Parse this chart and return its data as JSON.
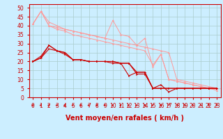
{
  "xlabel": "Vent moyen/en rafales ( km/h )",
  "bg_color": "#cceeff",
  "grid_color": "#aacccc",
  "xlim": [
    -0.5,
    23.5
  ],
  "ylim": [
    0,
    52
  ],
  "yticks": [
    0,
    5,
    10,
    15,
    20,
    25,
    30,
    35,
    40,
    45,
    50
  ],
  "xticks": [
    0,
    1,
    2,
    3,
    4,
    5,
    6,
    7,
    8,
    9,
    10,
    11,
    12,
    13,
    14,
    15,
    16,
    17,
    18,
    19,
    20,
    21,
    22,
    23
  ],
  "line_light_1": [
    41,
    48,
    40,
    39,
    38,
    37,
    36,
    35,
    34,
    33,
    32,
    31,
    30,
    29,
    28,
    27,
    26,
    25,
    10,
    9,
    8,
    7,
    6,
    5
  ],
  "line_light_2": [
    41,
    48,
    42,
    40,
    38,
    37,
    36,
    35,
    34,
    33,
    43,
    35,
    34,
    29,
    33,
    17,
    24,
    10,
    9,
    8,
    7,
    6,
    5,
    4
  ],
  "line_light_3": [
    41,
    48,
    40,
    38,
    37,
    35,
    34,
    33,
    32,
    31,
    30,
    29,
    28,
    27,
    26,
    18,
    24,
    10,
    9,
    8,
    7,
    6,
    5,
    4
  ],
  "line_dark_1": [
    20,
    23,
    29,
    26,
    25,
    21,
    21,
    20,
    20,
    20,
    20,
    19,
    12,
    14,
    14,
    5,
    7,
    3,
    5,
    5,
    5,
    5,
    5,
    5
  ],
  "line_dark_2": [
    20,
    22,
    29,
    26,
    25,
    21,
    21,
    20,
    20,
    20,
    20,
    19,
    19,
    14,
    14,
    5,
    5,
    5,
    5,
    5,
    5,
    5,
    5,
    5
  ],
  "line_dark_3": [
    20,
    22,
    27,
    26,
    24,
    21,
    21,
    20,
    20,
    20,
    19,
    19,
    19,
    13,
    13,
    5,
    5,
    5,
    5,
    5,
    5,
    5,
    5,
    5
  ],
  "light_color": "#ff9999",
  "dark_color": "#cc0000",
  "axis_color": "#cc0000",
  "label_color": "#cc0000",
  "xlabel_fontsize": 7,
  "tick_fontsize": 5.5
}
